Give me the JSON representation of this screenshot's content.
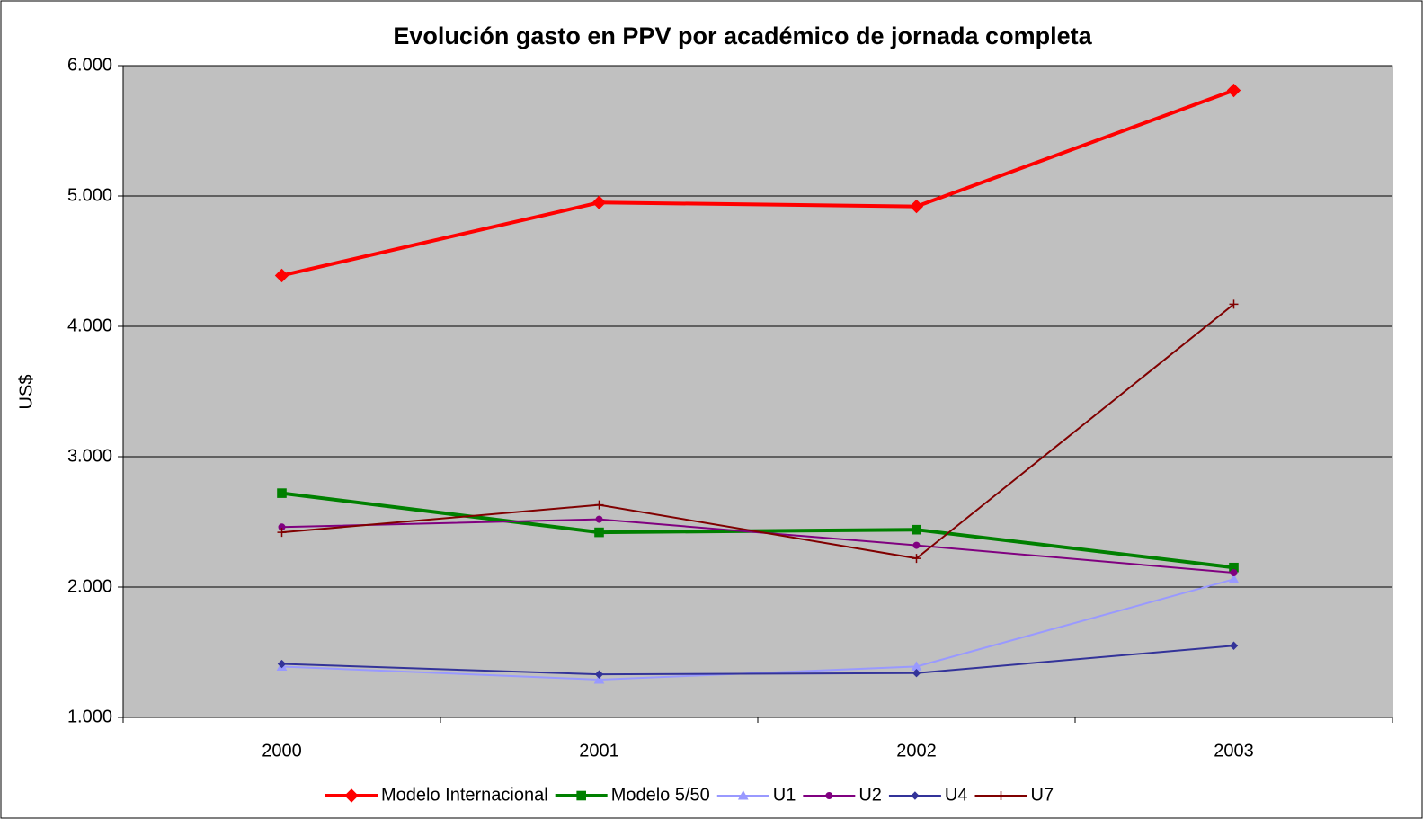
{
  "chart_data": {
    "type": "line",
    "title": "Evolución gasto en PPV por académico de jornada completa",
    "y_label": "US$",
    "categories": [
      "2000",
      "2001",
      "2002",
      "2003"
    ],
    "ylim": [
      1000,
      6000
    ],
    "yticks": [
      {
        "value": 1000,
        "label": "1.000"
      },
      {
        "value": 2000,
        "label": "2.000"
      },
      {
        "value": 3000,
        "label": "3.000"
      },
      {
        "value": 4000,
        "label": "4.000"
      },
      {
        "value": 5000,
        "label": "5.000"
      },
      {
        "value": 6000,
        "label": "6.000"
      }
    ],
    "grid": true,
    "legend": "bottom",
    "series": [
      {
        "name": "Modelo Internacional",
        "color": "#ff0000",
        "marker": "diamond",
        "values": [
          4390,
          4950,
          4920,
          5810
        ]
      },
      {
        "name": "Modelo  5/50",
        "color": "#008000",
        "marker": "square",
        "values": [
          2720,
          2420,
          2440,
          2150
        ]
      },
      {
        "name": "U1",
        "color": "#9999ff",
        "marker": "triangle",
        "values": [
          1390,
          1290,
          1390,
          2060
        ]
      },
      {
        "name": "U2",
        "color": "#800080",
        "marker": "circle",
        "values": [
          2460,
          2520,
          2320,
          2110
        ]
      },
      {
        "name": "U4",
        "color": "#333399",
        "marker": "diamond",
        "values": [
          1410,
          1330,
          1340,
          1550
        ]
      },
      {
        "name": "U7",
        "color": "#800000",
        "marker": "plus",
        "values": [
          2420,
          2630,
          2220,
          4170
        ]
      }
    ]
  }
}
